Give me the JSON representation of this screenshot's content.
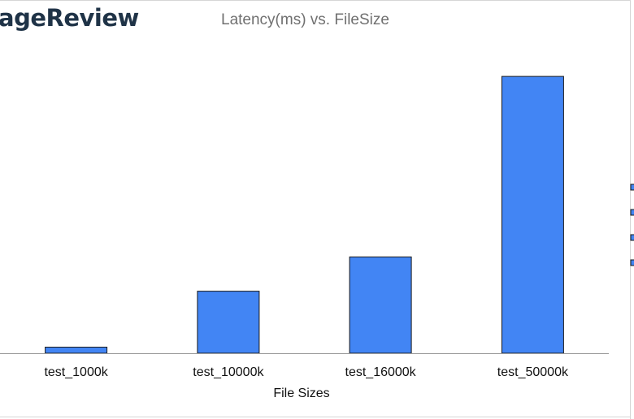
{
  "header": {
    "brand": "ageReview"
  },
  "chart_data": {
    "type": "bar",
    "title": "Latency(ms) vs. FileSize",
    "xlabel": "File Sizes",
    "ylabel": "",
    "categories": [
      "test_1000k",
      "test_10000k",
      "test_16000k",
      "test_50000k"
    ],
    "values": [
      1.1,
      11.2,
      17.4,
      50.0
    ],
    "ylim": [
      0,
      55
    ],
    "grid": false,
    "legend": "right (cropped)",
    "bar_color": "#4285f4",
    "legend_swatch_count": 4
  }
}
